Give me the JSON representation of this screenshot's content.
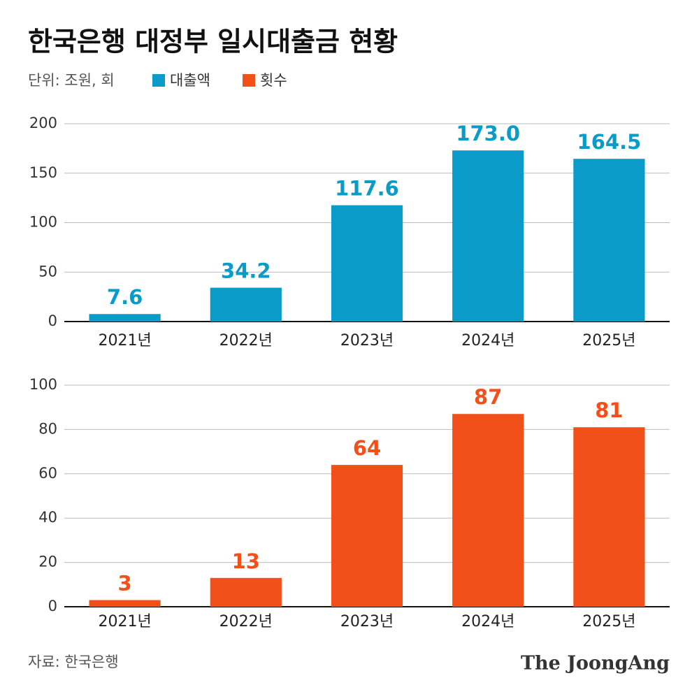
{
  "title": "한국은행 대정부 일시대출금 현황",
  "unit": "단위: 조원, 회",
  "source": "자료: 한국은행",
  "logo": "The JoongAng",
  "chart_data": [
    {
      "type": "bar",
      "categories": [
        "2021년",
        "2022년",
        "2023년",
        "2024년",
        "2025년"
      ],
      "series": [
        {
          "name": "대출액",
          "color": "#0a9bc9",
          "values": [
            7.6,
            34.2,
            117.6,
            173.0,
            164.5
          ],
          "value_labels": [
            "7.6",
            "34.2",
            "117.6",
            "173.0",
            "164.5"
          ]
        }
      ],
      "ylim": [
        0,
        200
      ],
      "yticks": [
        0,
        50,
        100,
        150,
        200
      ],
      "grid": true
    },
    {
      "type": "bar",
      "categories": [
        "2021년",
        "2022년",
        "2023년",
        "2024년",
        "2025년"
      ],
      "series": [
        {
          "name": "횟수",
          "color": "#f2501b",
          "values": [
            3,
            13,
            64,
            87,
            81
          ]
        }
      ],
      "ylim": [
        0,
        100
      ],
      "yticks": [
        0,
        20,
        40,
        60,
        80,
        100
      ],
      "grid": true
    }
  ]
}
